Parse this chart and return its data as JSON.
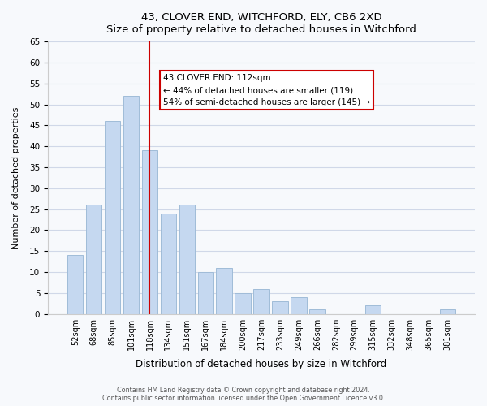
{
  "title_line1": "43, CLOVER END, WITCHFORD, ELY, CB6 2XD",
  "title_line2": "Size of property relative to detached houses in Witchford",
  "xlabel": "Distribution of detached houses by size in Witchford",
  "ylabel": "Number of detached properties",
  "categories": [
    "52sqm",
    "68sqm",
    "85sqm",
    "101sqm",
    "118sqm",
    "134sqm",
    "151sqm",
    "167sqm",
    "184sqm",
    "200sqm",
    "217sqm",
    "233sqm",
    "249sqm",
    "266sqm",
    "282sqm",
    "299sqm",
    "315sqm",
    "332sqm",
    "348sqm",
    "365sqm",
    "381sqm"
  ],
  "values": [
    14,
    26,
    46,
    52,
    39,
    24,
    26,
    10,
    11,
    5,
    6,
    3,
    4,
    1,
    0,
    0,
    2,
    0,
    0,
    0,
    1
  ],
  "bar_color": "#c5d8f0",
  "bar_edge_color": "#a0bcd8",
  "vline_x_index": 4,
  "vline_color": "#cc0000",
  "annotation_title": "43 CLOVER END: 112sqm",
  "annotation_line1": "← 44% of detached houses are smaller (119)",
  "annotation_line2": "54% of semi-detached houses are larger (145) →",
  "annotation_box_edge_color": "#cc0000",
  "ylim": [
    0,
    65
  ],
  "yticks": [
    0,
    5,
    10,
    15,
    20,
    25,
    30,
    35,
    40,
    45,
    50,
    55,
    60,
    65
  ],
  "footnote1": "Contains HM Land Registry data © Crown copyright and database right 2024.",
  "footnote2": "Contains public sector information licensed under the Open Government Licence v3.0.",
  "bg_color": "#f7f9fc",
  "plot_bg_color": "#f7f9fc",
  "grid_color": "#d0d8e8"
}
